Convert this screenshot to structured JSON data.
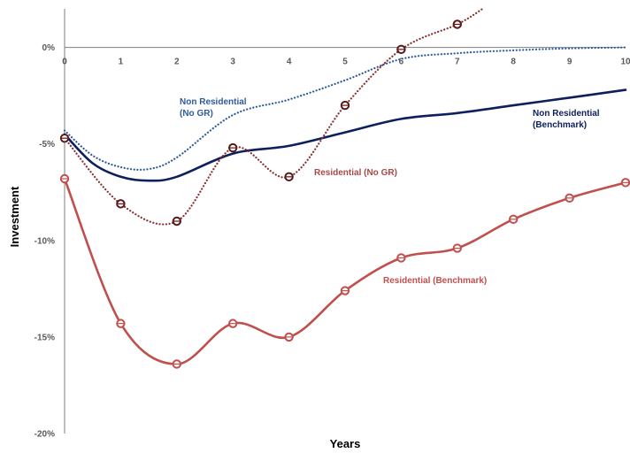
{
  "chart_data": {
    "type": "line",
    "title": "",
    "xlabel": "Years",
    "ylabel": "Investment",
    "x": [
      0,
      1,
      2,
      3,
      4,
      5,
      6,
      7,
      8,
      9,
      10
    ],
    "xlim": [
      0,
      10
    ],
    "ylim": [
      -20,
      2
    ],
    "x_ticks": [
      "0",
      "1",
      "2",
      "3",
      "4",
      "5",
      "6",
      "7",
      "8",
      "9",
      "10"
    ],
    "y_ticks": [
      {
        "value": 0,
        "label": "0%"
      },
      {
        "value": -5,
        "label": "-5%"
      },
      {
        "value": -10,
        "label": "-10%"
      },
      {
        "value": -15,
        "label": "-15%"
      },
      {
        "value": -20,
        "label": "-20%"
      }
    ],
    "grid": false,
    "legend": "none (series labeled inline)",
    "series": [
      {
        "name": "Non Residential (No GR)",
        "label_lines": [
          "Non Residential",
          "(No GR)"
        ],
        "style": "dotted",
        "markers": false,
        "color": "#2e5a9c",
        "x": [
          0,
          0.5,
          1,
          1.5,
          2,
          3,
          4,
          5,
          6,
          7,
          8,
          9,
          10
        ],
        "values": [
          -4.3,
          -5.6,
          -6.2,
          -6.3,
          -5.7,
          -3.5,
          -2.7,
          -1.7,
          -0.6,
          -0.3,
          -0.15,
          -0.05,
          0.0
        ]
      },
      {
        "name": "Non Residential (Benchmark)",
        "label_lines": [
          "Non Residential",
          "(Benchmark)"
        ],
        "style": "solid",
        "markers": false,
        "color": "#0d1f5c",
        "x": [
          0,
          0.5,
          1,
          1.5,
          2,
          3,
          4,
          5,
          6,
          7,
          8,
          9,
          10
        ],
        "values": [
          -4.5,
          -6.0,
          -6.7,
          -6.9,
          -6.7,
          -5.5,
          -5.1,
          -4.4,
          -3.7,
          -3.4,
          -3.0,
          -2.6,
          -2.2
        ]
      },
      {
        "name": "Residential (No GR)",
        "label_lines": [
          "Residential (No GR)"
        ],
        "style": "dotted",
        "markers": true,
        "color": "#8b2f2f",
        "marker_color": "#5a1818",
        "x": [
          0,
          1,
          2,
          3,
          4,
          5,
          6,
          7,
          7.45
        ],
        "values": [
          -4.7,
          -8.1,
          -9.0,
          -5.2,
          -6.7,
          -3.0,
          -0.1,
          1.2,
          2.0
        ]
      },
      {
        "name": "Residential (Benchmark)",
        "label_lines": [
          "Residential (Benchmark)"
        ],
        "style": "solid",
        "markers": true,
        "color": "#c0504d",
        "marker_color": "#c0504d",
        "x": [
          0,
          1,
          2,
          3,
          4,
          5,
          6,
          7,
          8,
          9,
          10
        ],
        "values": [
          -6.8,
          -14.3,
          -16.4,
          -14.3,
          -15.0,
          -12.6,
          -10.9,
          -10.4,
          -8.9,
          -7.8,
          -7.0
        ]
      }
    ]
  }
}
